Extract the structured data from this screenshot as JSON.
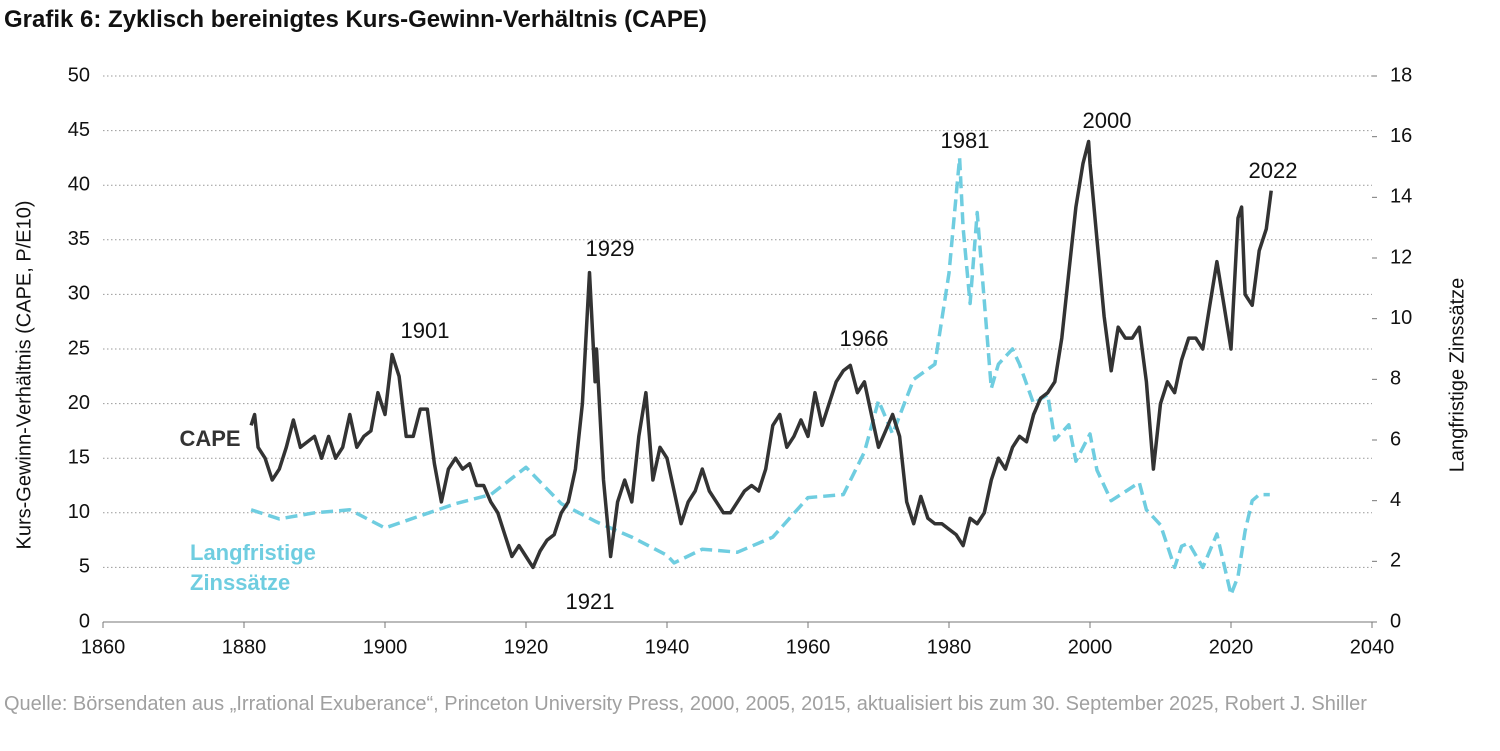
{
  "chart_data": {
    "type": "line",
    "title": "Grafik 6: Zyklisch bereinigtes Kurs-Gewinn-Verhältnis (CAPE)",
    "y_label": "Kurs-Gewinn-Verhältnis (CAPE, P/E10)",
    "y2_label": "Langfristige Zinssätze",
    "source": "Quelle: Börsendaten aus „Irrational Exuberance“, Princeton University Press, 2000, 2005, 2015, aktualisiert bis zum 30. September 2025, Robert J. Shiller",
    "annotations": [
      "1901",
      "1929",
      "1921",
      "1966",
      "1981",
      "2000",
      "2022"
    ],
    "xlim": [
      1860,
      2040
    ],
    "xticks": [
      1860,
      1880,
      1900,
      1920,
      1940,
      1960,
      1980,
      2000,
      2020,
      2040
    ],
    "ylim": [
      0,
      50
    ],
    "yticks": [
      0,
      5,
      10,
      15,
      20,
      25,
      30,
      35,
      40,
      45,
      50
    ],
    "y2lim": [
      0,
      18
    ],
    "y2ticks": [
      0,
      2,
      4,
      6,
      8,
      10,
      12,
      14,
      16,
      18
    ],
    "grid": true,
    "series": [
      {
        "name": "CAPE",
        "color": "#333333",
        "dashed": false,
        "x": [
          1881,
          1881.5,
          1882,
          1883,
          1884,
          1885,
          1886,
          1887,
          1888,
          1889,
          1890,
          1891,
          1892,
          1893,
          1894,
          1895,
          1896,
          1897,
          1898,
          1899,
          1900,
          1901,
          1902,
          1903,
          1904,
          1905,
          1906,
          1907,
          1908,
          1909,
          1910,
          1911,
          1912,
          1913,
          1914,
          1915,
          1916,
          1917,
          1918,
          1919,
          1920,
          1921,
          1922,
          1923,
          1924,
          1925,
          1926,
          1927,
          1928,
          1929,
          1929.8,
          1930,
          1931,
          1932,
          1933,
          1934,
          1935,
          1936,
          1937,
          1938,
          1939,
          1940,
          1941,
          1942,
          1943,
          1944,
          1945,
          1946,
          1947,
          1948,
          1949,
          1950,
          1951,
          1952,
          1953,
          1954,
          1955,
          1956,
          1957,
          1958,
          1959,
          1960,
          1961,
          1962,
          1963,
          1964,
          1965,
          1966,
          1967,
          1968,
          1969,
          1970,
          1971,
          1972,
          1973,
          1974,
          1975,
          1976,
          1977,
          1978,
          1979,
          1980,
          1981,
          1982,
          1983,
          1984,
          1985,
          1986,
          1987,
          1988,
          1989,
          1990,
          1991,
          1992,
          1993,
          1994,
          1995,
          1996,
          1997,
          1998,
          1999,
          1999.8,
          2000,
          2001,
          2002,
          2003,
          2004,
          2005,
          2006,
          2007,
          2008,
          2009,
          2010,
          2011,
          2012,
          2013,
          2014,
          2015,
          2016,
          2017,
          2018,
          2019,
          2020,
          2021,
          2021.5,
          2022,
          2023,
          2024,
          2025,
          2025.7
        ],
        "values": [
          18,
          19,
          16,
          15,
          13,
          14,
          16,
          18.5,
          16,
          16.5,
          17,
          15,
          17,
          15,
          16,
          19,
          16,
          17,
          17.5,
          21,
          19,
          24.5,
          22.5,
          17,
          17,
          19.5,
          19.5,
          14.5,
          11,
          14,
          15,
          14,
          14.5,
          12.5,
          12.5,
          11,
          10,
          8,
          6,
          7,
          6,
          5,
          6.5,
          7.5,
          8,
          10,
          11,
          14,
          20,
          32,
          22,
          25,
          13,
          6,
          11,
          13,
          11,
          17,
          21,
          13,
          16,
          15,
          12,
          9,
          11,
          12,
          14,
          12,
          11,
          10,
          10,
          11,
          12,
          12.5,
          12,
          14,
          18,
          19,
          16,
          17,
          18.5,
          17,
          21,
          18,
          20,
          22,
          23,
          23.5,
          21,
          22,
          19,
          16,
          17.5,
          19,
          17,
          11,
          9,
          11.5,
          9.5,
          9,
          9,
          8.5,
          8,
          7,
          9.5,
          9,
          10,
          13,
          15,
          14,
          16,
          17,
          16.5,
          19,
          20.5,
          21,
          22,
          26,
          32,
          38,
          42,
          44,
          42,
          35,
          28,
          23,
          27,
          26,
          26,
          27,
          22,
          14,
          20,
          22,
          21,
          24,
          26,
          26,
          25,
          29,
          33,
          29,
          25,
          37,
          38,
          30,
          29,
          34,
          36,
          39.5
        ]
      },
      {
        "name": "Langfristige Zinssätze",
        "color": "#6fcde0",
        "dashed": true,
        "axis": "y2",
        "x": [
          1881,
          1885,
          1890,
          1895,
          1900,
          1905,
          1910,
          1915,
          1920,
          1925,
          1930,
          1935,
          1940,
          1941,
          1945,
          1950,
          1955,
          1960,
          1965,
          1968,
          1970,
          1972,
          1975,
          1978,
          1980,
          1981.5,
          1982,
          1983,
          1984,
          1986,
          1987,
          1989,
          1990,
          1992,
          1994,
          1995,
          1997,
          1998,
          2000,
          2001,
          2003,
          2005,
          2007,
          2008,
          2010,
          2012,
          2013,
          2014,
          2016,
          2018,
          2020,
          2021,
          2022,
          2023,
          2024,
          2025.5
        ],
        "values": [
          3.7,
          3.4,
          3.6,
          3.7,
          3.1,
          3.5,
          3.9,
          4.2,
          5.1,
          3.9,
          3.3,
          2.8,
          2.2,
          1.95,
          2.4,
          2.3,
          2.8,
          4.1,
          4.2,
          5.6,
          7.3,
          6.2,
          8.0,
          8.5,
          11.5,
          15.3,
          13,
          10.5,
          13.5,
          7.7,
          8.5,
          9,
          8.5,
          7.2,
          7.5,
          6,
          6.5,
          5.3,
          6.2,
          5,
          4,
          4.3,
          4.6,
          3.7,
          3.2,
          1.8,
          2.5,
          2.6,
          1.8,
          2.9,
          0.9,
          1.5,
          3.0,
          4.0,
          4.2,
          4.2
        ]
      }
    ]
  }
}
